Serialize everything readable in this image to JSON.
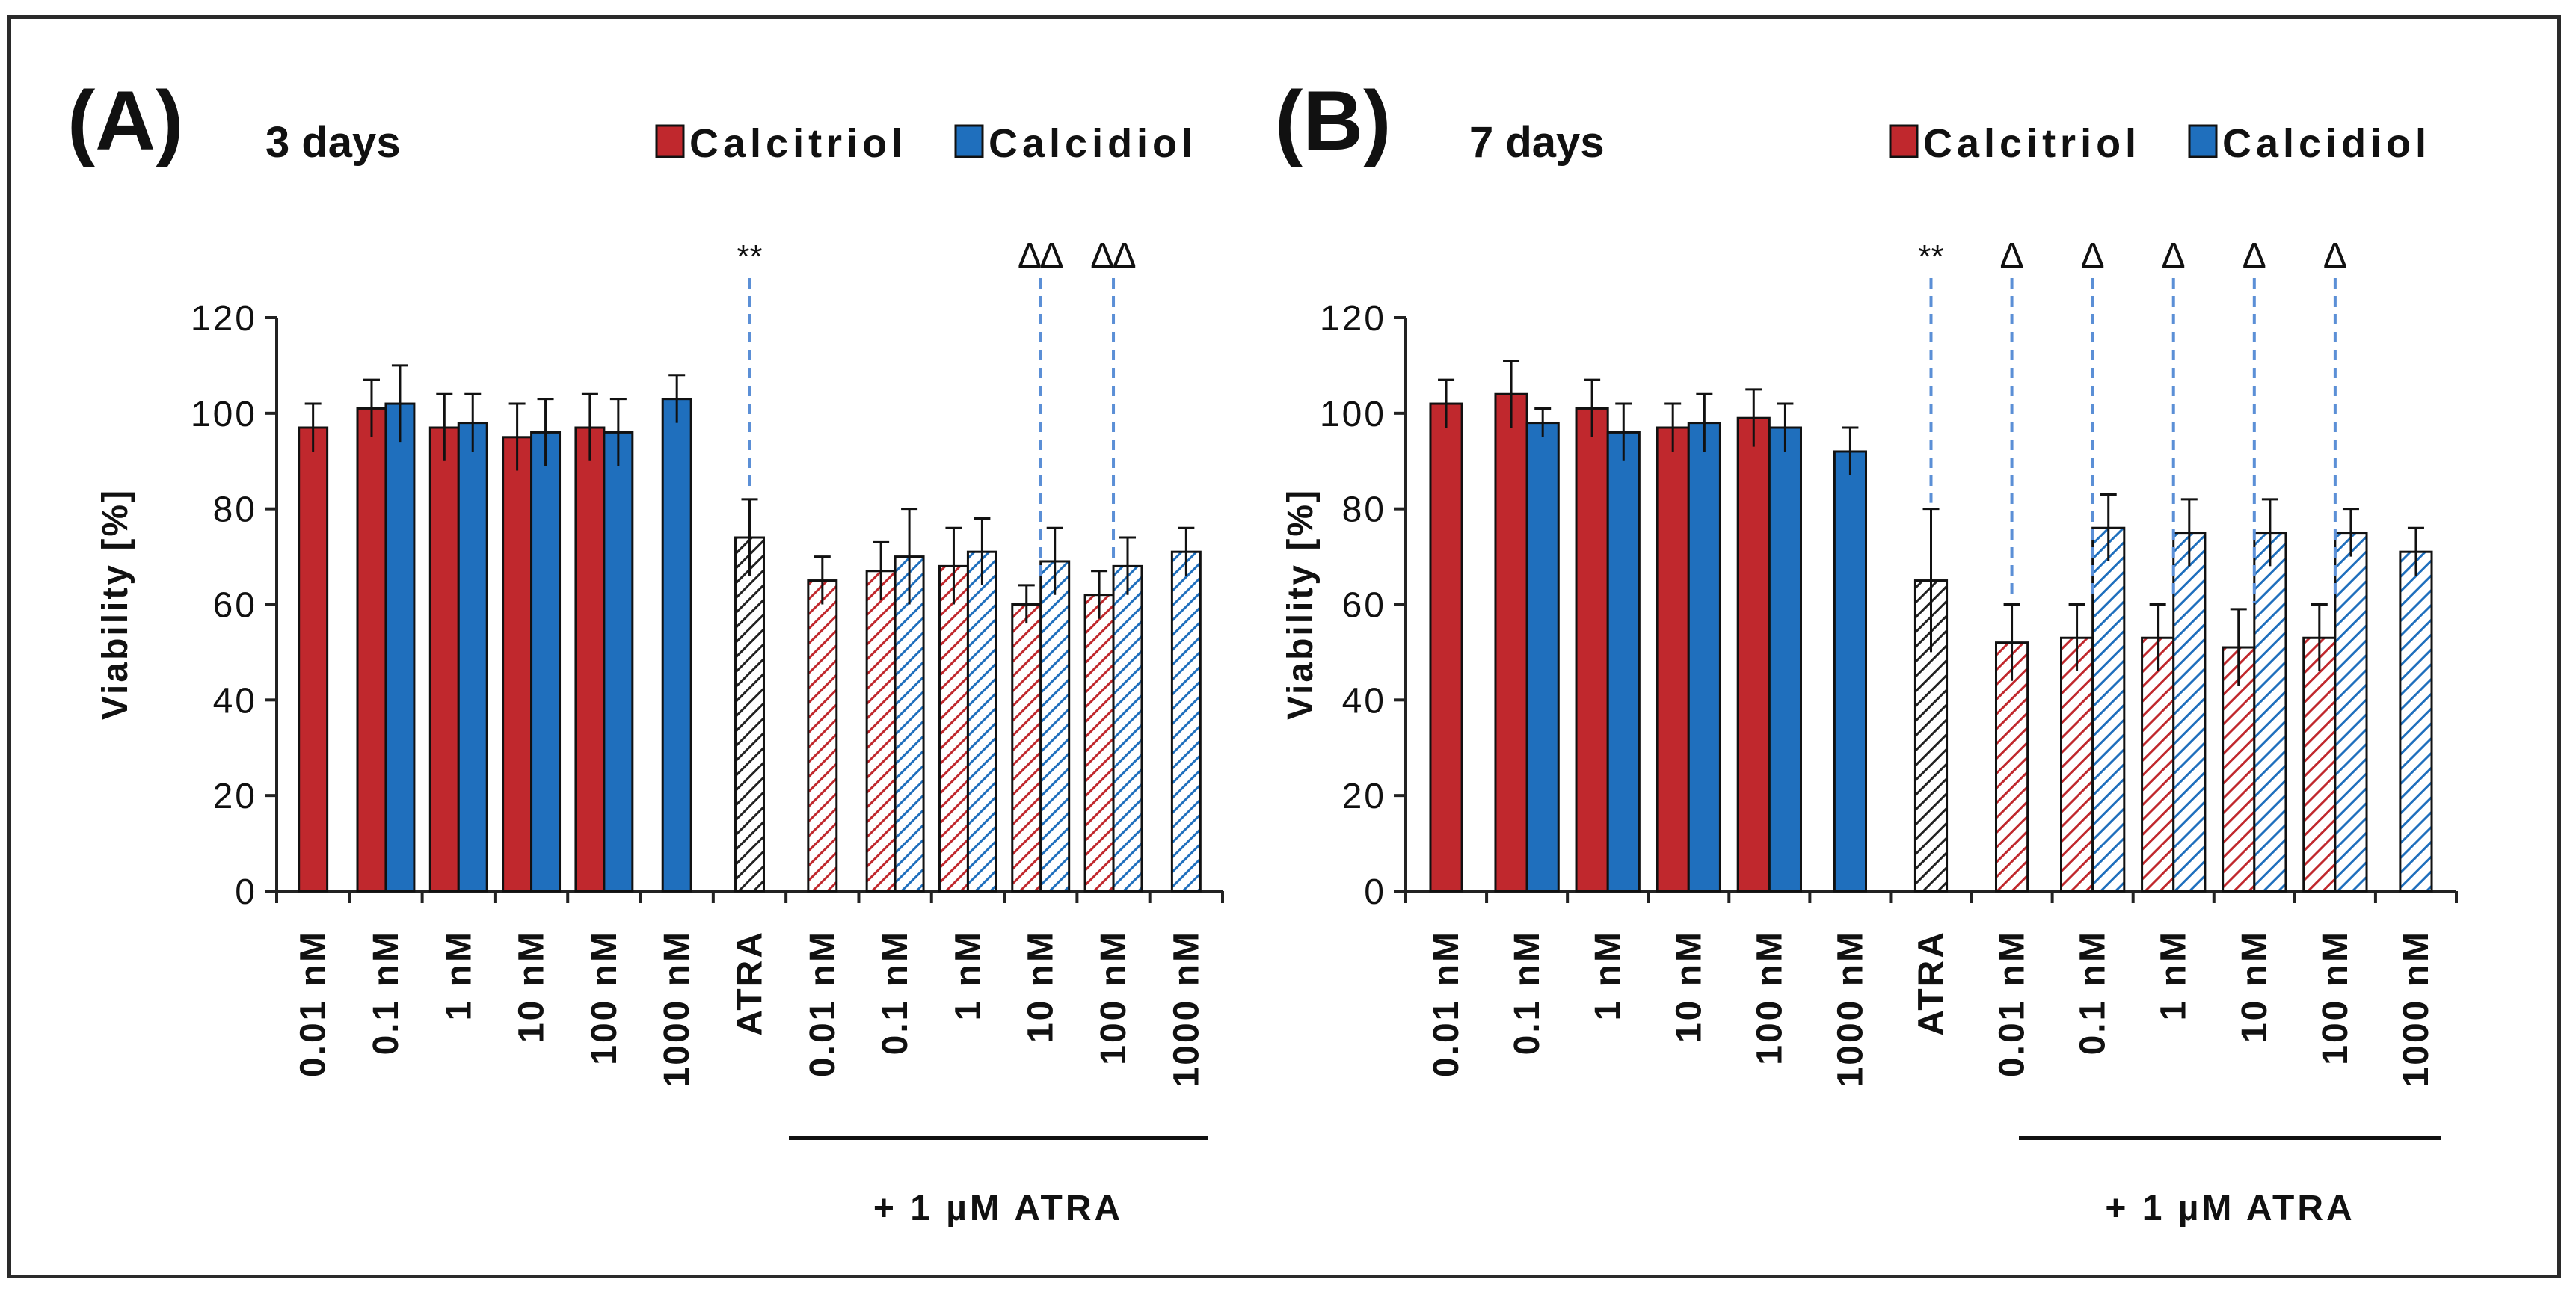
{
  "colors": {
    "calcitriol": "#c0282d",
    "calcidiol": "#1f6fbd",
    "atra": "#222222",
    "dashed": "#5b8fd6",
    "axis": "#222222"
  },
  "shared": {
    "legend": {
      "calcitriol": "Calcitriol",
      "calcidiol": "Calcidiol"
    },
    "ylabel": "Viability [%]",
    "atra_group_label": "+ 1 µM ATRA"
  },
  "chart_data": [
    {
      "type": "bar",
      "panel_label": "(A)",
      "title": "3 days",
      "ylabel": "Viability [%]",
      "ylim": [
        0,
        120
      ],
      "yticks": [
        0,
        20,
        40,
        60,
        80,
        100,
        120
      ],
      "legend": [
        "Calcitriol",
        "Calcidiol"
      ],
      "categories": [
        "0.01 nM",
        "0.1 nM",
        "1 nM",
        "10 nM",
        "100 nM",
        "1000 nM",
        "ATRA",
        "0.01 nM",
        "0.1 nM",
        "1 nM",
        "10 nM",
        "100 nM",
        "1000 nM"
      ],
      "group_label": "+ 1 µM ATRA",
      "series": [
        {
          "name": "Calcitriol",
          "values": [
            97,
            101,
            97,
            95,
            97,
            null,
            null,
            65,
            67,
            68,
            60,
            62,
            null
          ],
          "errors": [
            5,
            6,
            7,
            7,
            7,
            null,
            null,
            5,
            6,
            8,
            4,
            5,
            null
          ]
        },
        {
          "name": "Calcidiol",
          "values": [
            null,
            102,
            98,
            96,
            96,
            103,
            null,
            null,
            70,
            71,
            69,
            68,
            71
          ],
          "errors": [
            null,
            8,
            6,
            7,
            7,
            5,
            null,
            null,
            10,
            7,
            7,
            6,
            5
          ]
        },
        {
          "name": "ATRA",
          "values": [
            null,
            null,
            null,
            null,
            null,
            null,
            74,
            null,
            null,
            null,
            null,
            null,
            null
          ],
          "errors": [
            null,
            null,
            null,
            null,
            null,
            null,
            8,
            null,
            null,
            null,
            null,
            null,
            null
          ]
        }
      ],
      "annotations": [
        {
          "category_index": 6,
          "text": "**"
        },
        {
          "category_index": 10,
          "text": "∆∆"
        },
        {
          "category_index": 11,
          "text": "∆∆"
        }
      ]
    },
    {
      "type": "bar",
      "panel_label": "(B)",
      "title": "7 days",
      "ylabel": "Viability [%]",
      "ylim": [
        0,
        120
      ],
      "yticks": [
        0,
        20,
        40,
        60,
        80,
        100,
        120
      ],
      "legend": [
        "Calcitriol",
        "Calcidiol"
      ],
      "categories": [
        "0.01 nM",
        "0.1 nM",
        "1 nM",
        "10 nM",
        "100 nM",
        "1000 nM",
        "ATRA",
        "0.01 nM",
        "0.1 nM",
        "1 nM",
        "10 nM",
        "100 nM",
        "1000 nM"
      ],
      "group_label": "+ 1 µM ATRA",
      "series": [
        {
          "name": "Calcitriol",
          "values": [
            102,
            104,
            101,
            97,
            99,
            null,
            null,
            52,
            53,
            53,
            51,
            53,
            null
          ],
          "errors": [
            5,
            7,
            6,
            5,
            6,
            null,
            null,
            8,
            7,
            7,
            8,
            7,
            null
          ]
        },
        {
          "name": "Calcidiol",
          "values": [
            null,
            98,
            96,
            98,
            97,
            92,
            null,
            null,
            76,
            75,
            75,
            75,
            71
          ],
          "errors": [
            null,
            3,
            6,
            6,
            5,
            5,
            null,
            null,
            7,
            7,
            7,
            5,
            5
          ]
        },
        {
          "name": "ATRA",
          "values": [
            null,
            null,
            null,
            null,
            null,
            null,
            65,
            null,
            null,
            null,
            null,
            null,
            null
          ],
          "errors": [
            null,
            null,
            null,
            null,
            null,
            null,
            15,
            null,
            null,
            null,
            null,
            null,
            null
          ]
        }
      ],
      "annotations": [
        {
          "category_index": 6,
          "text": "**"
        },
        {
          "category_index": 7,
          "text": "∆"
        },
        {
          "category_index": 8,
          "text": "∆"
        },
        {
          "category_index": 9,
          "text": "∆"
        },
        {
          "category_index": 10,
          "text": "∆"
        },
        {
          "category_index": 11,
          "text": "∆"
        }
      ]
    }
  ]
}
